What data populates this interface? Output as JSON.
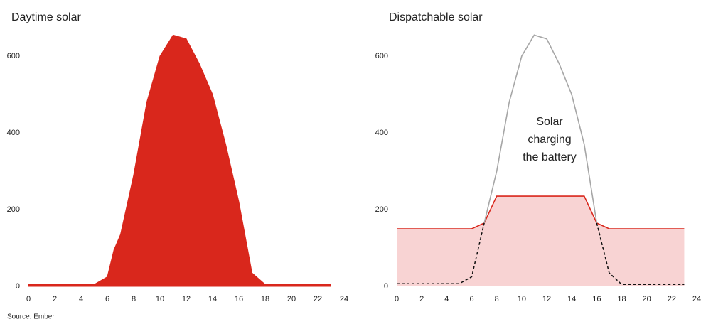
{
  "chart_data": [
    {
      "type": "area",
      "title": "Daytime solar",
      "color": "#d9271c",
      "x": [
        0,
        1,
        2,
        3,
        4,
        5,
        6,
        6.5,
        7,
        8,
        9,
        10,
        11,
        12,
        13,
        14,
        15,
        16,
        17,
        18,
        19,
        20,
        21,
        22,
        23
      ],
      "values": [
        5,
        5,
        5,
        5,
        5,
        5,
        25,
        95,
        135,
        290,
        480,
        600,
        655,
        645,
        580,
        500,
        370,
        220,
        35,
        5,
        5,
        5,
        5,
        5,
        5
      ],
      "xlim": [
        0,
        24
      ],
      "xticks": [
        0,
        2,
        4,
        6,
        8,
        10,
        12,
        14,
        16,
        18,
        20,
        22,
        24
      ],
      "ylim": [
        0,
        700
      ],
      "yticks": [
        0,
        200,
        400,
        600
      ]
    },
    {
      "type": "line",
      "title": "Dispatchable solar",
      "x": [
        0,
        1,
        2,
        3,
        4,
        5,
        6,
        7,
        8,
        9,
        10,
        11,
        12,
        13,
        14,
        15,
        16,
        17,
        18,
        19,
        20,
        21,
        22,
        23
      ],
      "series": [
        {
          "color": "#d9271c",
          "fill": "#f8d3d3",
          "values": [
            150,
            150,
            150,
            150,
            150,
            150,
            150,
            165,
            235,
            235,
            235,
            235,
            235,
            235,
            235,
            235,
            165,
            150,
            150,
            150,
            150,
            150,
            150,
            150
          ]
        },
        {
          "color": "#a6a6a6",
          "values": [
            null,
            null,
            null,
            null,
            null,
            null,
            null,
            165,
            300,
            480,
            600,
            655,
            645,
            580,
            500,
            370,
            165,
            null,
            null,
            null,
            null,
            null,
            null,
            null
          ]
        },
        {
          "color": "#111111",
          "dashed": true,
          "values": [
            7,
            7,
            7,
            7,
            7,
            7,
            25,
            165,
            null,
            null,
            null,
            null,
            null,
            null,
            null,
            null,
            165,
            35,
            5,
            5,
            5,
            5,
            5,
            5
          ]
        }
      ],
      "annotation": [
        "Solar",
        "charging",
        "the battery"
      ],
      "xlim": [
        0,
        24
      ],
      "xticks": [
        0,
        2,
        4,
        6,
        8,
        10,
        12,
        14,
        16,
        18,
        20,
        22,
        24
      ],
      "ylim": [
        0,
        700
      ],
      "yticks": [
        0,
        200,
        400,
        600
      ]
    }
  ],
  "source": "Source: Ember"
}
